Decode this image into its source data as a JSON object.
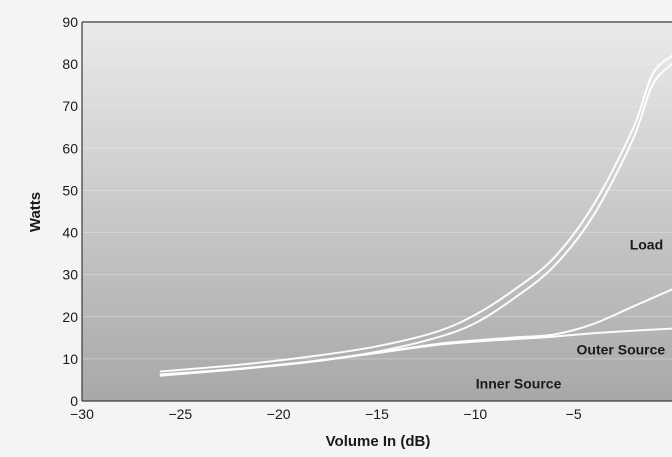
{
  "chart_data": {
    "type": "line",
    "title": "",
    "xlabel": "Volume In (dB)",
    "ylabel": "Watts",
    "xlim": [
      -30,
      0
    ],
    "ylim": [
      0,
      90
    ],
    "x_ticks": [
      "−30",
      "−25",
      "−20",
      "−15",
      "−10",
      "−5"
    ],
    "x_tick_values": [
      -30,
      -25,
      -20,
      -15,
      -10,
      -5
    ],
    "y_ticks": [
      "0",
      "10",
      "20",
      "30",
      "40",
      "50",
      "60",
      "70",
      "80",
      "90"
    ],
    "y_tick_values": [
      0,
      10,
      20,
      30,
      40,
      50,
      60,
      70,
      80,
      90
    ],
    "grid": "horizontal",
    "series": [
      {
        "label": "Load",
        "x": [
          -26,
          -22,
          -18,
          -15,
          -12,
          -10,
          -8,
          -6,
          -4,
          -2,
          -1,
          0
        ],
        "y": [
          6,
          7.6,
          9.6,
          11.7,
          15,
          18.5,
          24.5,
          32,
          44,
          62,
          75,
          80
        ]
      },
      {
        "label": "Load",
        "x": [
          -26,
          -22,
          -18,
          -15,
          -12,
          -10,
          -8,
          -6,
          -4,
          -2,
          -1,
          0
        ],
        "y": [
          7,
          8.6,
          10.8,
          13,
          16.4,
          20.5,
          26.5,
          34,
          46.5,
          64.5,
          77.5,
          82
        ]
      },
      {
        "label": "Outer Source",
        "x": [
          -26,
          -22,
          -18,
          -15,
          -12,
          -10,
          -8,
          -6,
          -4,
          -2,
          0
        ],
        "y": [
          6.2,
          7.6,
          9.5,
          11.5,
          13.5,
          14.4,
          15.1,
          15.8,
          18.3,
          22.4,
          26.5
        ]
      },
      {
        "label": "Inner Source",
        "x": [
          -26,
          -22,
          -18,
          -15,
          -12,
          -10,
          -8,
          -6,
          -4,
          -2,
          0
        ],
        "y": [
          6.3,
          7.7,
          9.6,
          11.4,
          13.3,
          14.1,
          14.7,
          15.3,
          16.1,
          16.7,
          17.2
        ]
      }
    ],
    "annotations": [
      {
        "text": "Load",
        "x": -1.3,
        "y": 36
      },
      {
        "text": "Outer Source",
        "x": -2.6,
        "y": 11
      },
      {
        "text": "Inner Source",
        "x": -7.8,
        "y": 3
      }
    ],
    "colors": {
      "plot_top": "#eaeaea",
      "plot_bottom": "#a8a8a8",
      "curve": "#ffffff",
      "gridline": "#f2f2f2",
      "border": "#3a3a3a",
      "text": "#1a1a1a"
    }
  }
}
